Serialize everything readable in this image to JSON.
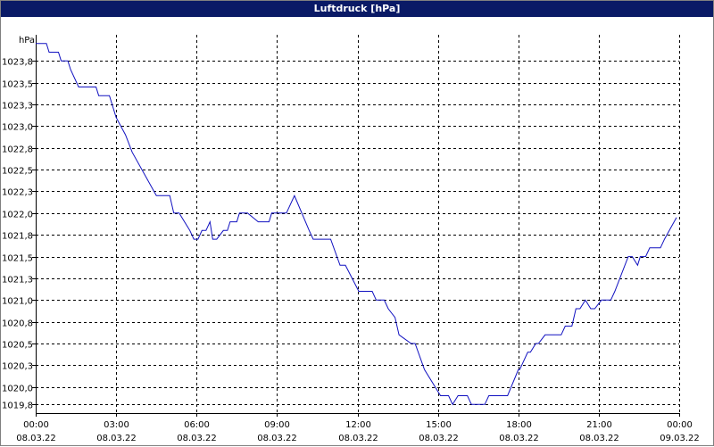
{
  "window": {
    "title": "Luftdruck [hPa]"
  },
  "colors": {
    "line": "#1010c0",
    "titlebar": "#0a1a66",
    "grid": "#000000"
  },
  "chart_data": {
    "type": "line",
    "title": "Luftdruck [hPa]",
    "ylabel": "hPa",
    "xlabel": "",
    "grid": true,
    "legend": "none",
    "ylim": [
      1019.7,
      1024.05
    ],
    "xlim": [
      0,
      24
    ],
    "y_ticks": [
      {
        "value": 1019.8,
        "label": "1019,8"
      },
      {
        "value": 1020.0,
        "label": "1020,0"
      },
      {
        "value": 1020.25,
        "label": "1020,3"
      },
      {
        "value": 1020.5,
        "label": "1020,5"
      },
      {
        "value": 1020.75,
        "label": "1020,8"
      },
      {
        "value": 1021.0,
        "label": "1021,0"
      },
      {
        "value": 1021.25,
        "label": "1021,3"
      },
      {
        "value": 1021.5,
        "label": "1021,5"
      },
      {
        "value": 1021.75,
        "label": "1021,8"
      },
      {
        "value": 1022.0,
        "label": "1022,0"
      },
      {
        "value": 1022.25,
        "label": "1022,3"
      },
      {
        "value": 1022.5,
        "label": "1022,5"
      },
      {
        "value": 1022.75,
        "label": "1022,8"
      },
      {
        "value": 1023.0,
        "label": "1023,0"
      },
      {
        "value": 1023.25,
        "label": "1023,3"
      },
      {
        "value": 1023.5,
        "label": "1023,5"
      },
      {
        "value": 1023.75,
        "label": "1023,8"
      }
    ],
    "x_ticks": [
      {
        "value": 0,
        "time": "00:00",
        "date": "08.03.22"
      },
      {
        "value": 3,
        "time": "03:00",
        "date": "08.03.22"
      },
      {
        "value": 6,
        "time": "06:00",
        "date": "08.03.22"
      },
      {
        "value": 9,
        "time": "09:00",
        "date": "08.03.22"
      },
      {
        "value": 12,
        "time": "12:00",
        "date": "08.03.22"
      },
      {
        "value": 15,
        "time": "15:00",
        "date": "08.03.22"
      },
      {
        "value": 18,
        "time": "18:00",
        "date": "08.03.22"
      },
      {
        "value": 21,
        "time": "21:00",
        "date": "08.03.22"
      },
      {
        "value": 24,
        "time": "00:00",
        "date": "09.03.22"
      }
    ],
    "series": [
      {
        "x": [
          0,
          0.4,
          0.5,
          0.85,
          0.95,
          1.2,
          1.3,
          1.6,
          1.7,
          2.25,
          2.35,
          2.75,
          2.85,
          3.0,
          3.35,
          3.6,
          4.5,
          5.0,
          5.15,
          5.35,
          5.75,
          5.9,
          6.05,
          6.2,
          6.35,
          6.5,
          6.6,
          6.75,
          7.0,
          7.15,
          7.25,
          7.5,
          7.6,
          7.75,
          7.9,
          8.3,
          8.4,
          8.7,
          8.8,
          9.25,
          9.35,
          9.5,
          9.65,
          10.2,
          10.35,
          11.0,
          11.35,
          11.55,
          12.05,
          12.15,
          12.55,
          12.7,
          13.0,
          13.15,
          13.4,
          13.55,
          14.0,
          14.15,
          14.5,
          15.1,
          15.25,
          15.4,
          15.55,
          15.75,
          16.1,
          16.25,
          16.75,
          16.9,
          17.6,
          18.0,
          18.05,
          18.35,
          18.45,
          18.65,
          18.75,
          19.0,
          19.15,
          19.6,
          19.75,
          20.0,
          20.15,
          20.3,
          20.5,
          20.7,
          20.85,
          21.1,
          21.2,
          21.45,
          21.6,
          22.1,
          22.25,
          22.45,
          22.55,
          22.75,
          22.9,
          23.3,
          23.45,
          23.9
        ],
        "y": [
          1023.95,
          1023.95,
          1023.85,
          1023.85,
          1023.75,
          1023.75,
          1023.65,
          1023.45,
          1023.45,
          1023.45,
          1023.35,
          1023.35,
          1023.25,
          1023.1,
          1022.9,
          1022.7,
          1022.2,
          1022.2,
          1022.0,
          1022.0,
          1021.8,
          1021.7,
          1021.7,
          1021.8,
          1021.8,
          1021.9,
          1021.7,
          1021.7,
          1021.8,
          1021.8,
          1021.9,
          1021.9,
          1022.0,
          1022.0,
          1022.0,
          1021.9,
          1021.9,
          1021.9,
          1022.0,
          1022.0,
          1022.0,
          1022.1,
          1022.2,
          1021.8,
          1021.7,
          1021.7,
          1021.4,
          1021.4,
          1021.1,
          1021.1,
          1021.1,
          1021.0,
          1021.0,
          1020.9,
          1020.8,
          1020.6,
          1020.5,
          1020.5,
          1020.2,
          1019.9,
          1019.9,
          1019.9,
          1019.8,
          1019.9,
          1019.9,
          1019.8,
          1019.8,
          1019.9,
          1019.9,
          1020.2,
          1020.2,
          1020.4,
          1020.4,
          1020.5,
          1020.5,
          1020.6,
          1020.6,
          1020.6,
          1020.7,
          1020.7,
          1020.9,
          1020.9,
          1021.0,
          1020.9,
          1020.9,
          1021.0,
          1021.0,
          1021.0,
          1021.1,
          1021.5,
          1021.5,
          1021.4,
          1021.5,
          1021.5,
          1021.6,
          1021.6,
          1021.7,
          1021.95
        ]
      }
    ]
  }
}
